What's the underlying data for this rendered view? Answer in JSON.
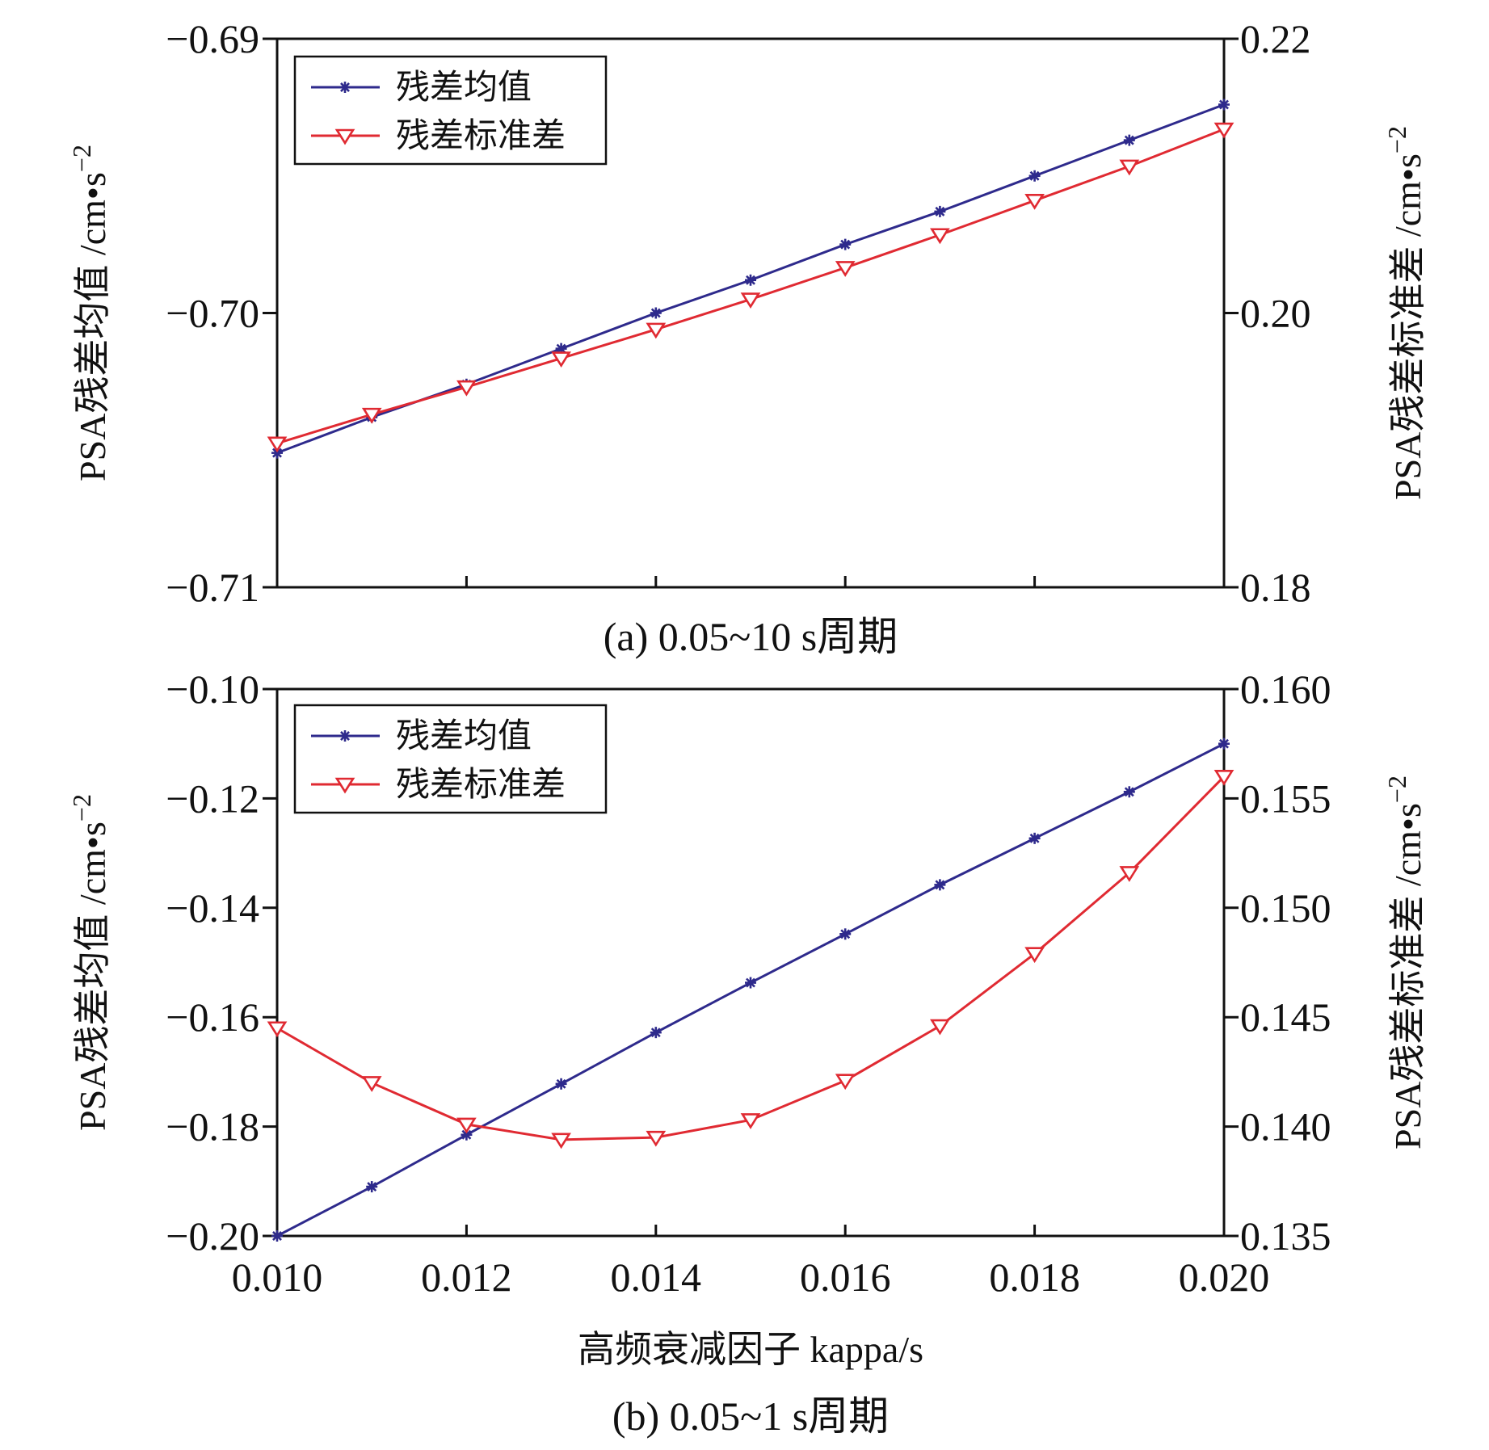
{
  "colors": {
    "mean": "#2e2a8c",
    "std": "#e02a32",
    "axis": "#111111"
  },
  "chart_data": [
    {
      "type": "line",
      "panel": "a",
      "caption": "(a) 0.05~10 s周期",
      "x": [
        0.01,
        0.011,
        0.012,
        0.013,
        0.014,
        0.015,
        0.016,
        0.017,
        0.018,
        0.019,
        0.02
      ],
      "xlim": [
        0.01,
        0.02
      ],
      "x_ticks": [
        0.01,
        0.012,
        0.014,
        0.016,
        0.018,
        0.02
      ],
      "x_tick_labels_shown": false,
      "ylabel_left": "PSA残差均值 /cm•s⁻²",
      "ylabel_right": "PSA残差标准差 /cm•s⁻²",
      "ylim_left": [
        -0.71,
        -0.69
      ],
      "ylim_right": [
        0.18,
        0.22
      ],
      "yticks_left": [
        "−0.69",
        "−0.70",
        "−0.71"
      ],
      "yticks_right": [
        "0.22",
        "0.20",
        "0.18"
      ],
      "legend_position": "top-left",
      "series": [
        {
          "name": "残差均值",
          "axis": "left",
          "marker": "asterisk",
          "values": [
            -0.7051,
            -0.7038,
            -0.7026,
            -0.7013,
            -0.7,
            -0.6988,
            -0.6975,
            -0.6963,
            -0.695,
            -0.6937,
            -0.6924
          ]
        },
        {
          "name": "残差标准差",
          "axis": "right",
          "marker": "triangle-down",
          "values": [
            0.1905,
            0.1926,
            0.1946,
            0.1967,
            0.1988,
            0.201,
            0.2033,
            0.2057,
            0.2082,
            0.2107,
            0.2134
          ]
        }
      ]
    },
    {
      "type": "line",
      "panel": "b",
      "caption": "(b) 0.05~1 s周期",
      "x": [
        0.01,
        0.011,
        0.012,
        0.013,
        0.014,
        0.015,
        0.016,
        0.017,
        0.018,
        0.019,
        0.02
      ],
      "xlim": [
        0.01,
        0.02
      ],
      "x_ticks": [
        0.01,
        0.012,
        0.014,
        0.016,
        0.018,
        0.02
      ],
      "x_tick_labels_shown": true,
      "xtick_labels": [
        "0.010",
        "0.012",
        "0.014",
        "0.016",
        "0.018",
        "0.020"
      ],
      "xlabel": "高频衰减因子 kappa/s",
      "ylabel_left": "PSA残差均值 /cm•s⁻²",
      "ylabel_right": "PSA残差标准差 /cm•s⁻²",
      "ylim_left": [
        -0.2,
        -0.1
      ],
      "ylim_right": [
        0.135,
        0.16
      ],
      "yticks_left": [
        "−0.10",
        "−0.12",
        "−0.14",
        "−0.16",
        "−0.18",
        "−0.20"
      ],
      "yticks_right": [
        "0.160",
        "0.155",
        "0.150",
        "0.145",
        "0.140",
        "0.135"
      ],
      "legend_position": "top-left",
      "series": [
        {
          "name": "残差均值",
          "axis": "left",
          "marker": "asterisk",
          "values": [
            -0.2,
            -0.191,
            -0.1815,
            -0.1722,
            -0.1628,
            -0.1537,
            -0.1448,
            -0.1358,
            -0.1273,
            -0.1188,
            -0.11
          ]
        },
        {
          "name": "残差标准差",
          "axis": "right",
          "marker": "triangle-down",
          "values": [
            0.1445,
            0.142,
            0.1401,
            0.1394,
            0.1395,
            0.1403,
            0.1421,
            0.1446,
            0.1479,
            0.1516,
            0.156
          ]
        }
      ]
    }
  ]
}
